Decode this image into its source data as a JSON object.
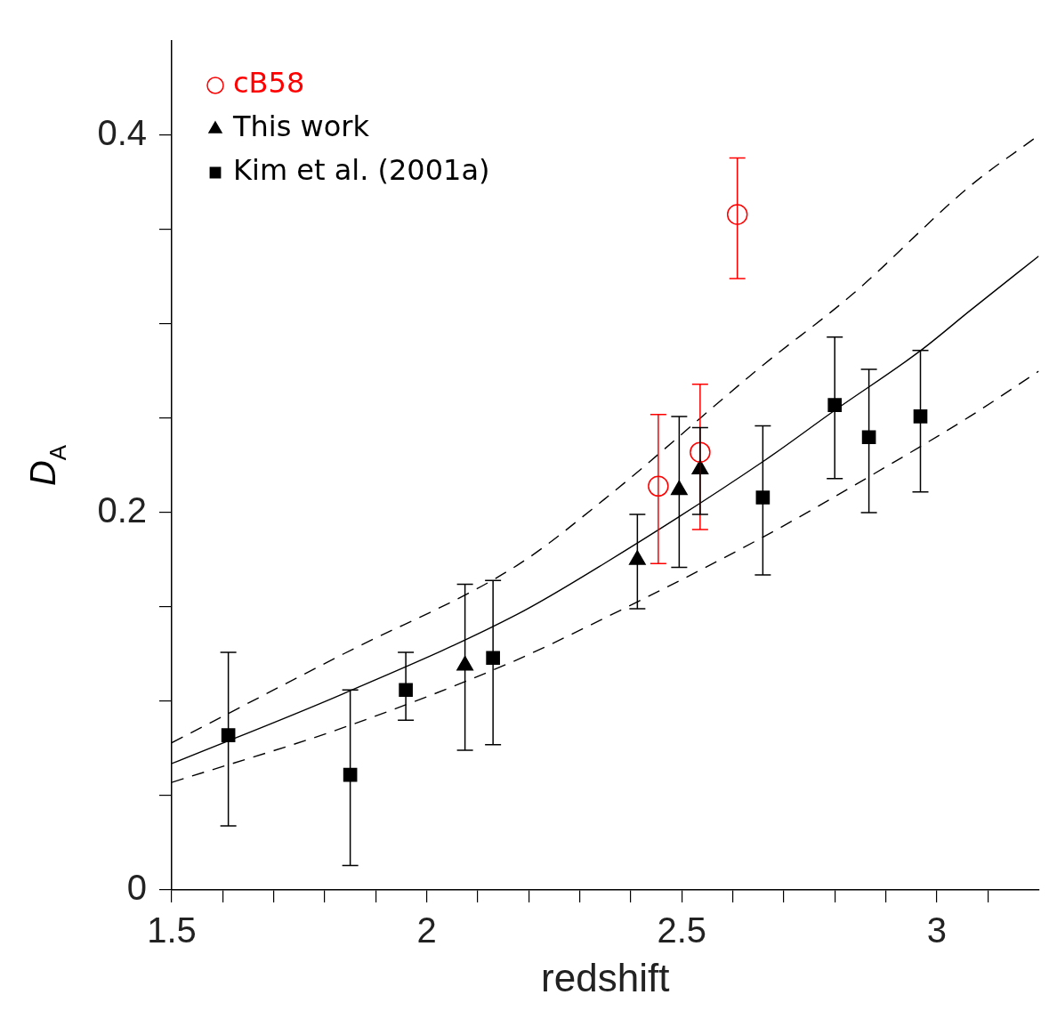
{
  "chart_data": {
    "type": "scatter",
    "xlabel": "redshift",
    "ylabel": "D$_{A}$",
    "xlim": [
      1.5,
      3.2
    ],
    "ylim": [
      0,
      0.45
    ],
    "xticks": [
      1.5,
      {
        "value": 1.6,
        "label": null
      },
      {
        "value": 1.7,
        "label": null
      },
      {
        "value": 1.8,
        "label": null
      },
      {
        "value": 1.9,
        "label": null
      },
      2,
      {
        "value": 2.1,
        "label": null
      },
      {
        "value": 2.2,
        "label": null
      },
      {
        "value": 2.3,
        "label": null
      },
      {
        "value": 2.4,
        "label": null
      },
      2.5,
      {
        "value": 2.6,
        "label": null
      },
      {
        "value": 2.7,
        "label": null
      },
      {
        "value": 2.8,
        "label": null
      },
      {
        "value": 2.9,
        "label": null
      },
      3,
      {
        "value": 3.1,
        "label": null
      }
    ],
    "yticks": [
      0,
      {
        "value": 0.05,
        "label": null
      },
      {
        "value": 0.1,
        "label": null
      },
      {
        "value": 0.15,
        "label": null
      },
      0.2,
      {
        "value": 0.25,
        "label": null
      },
      {
        "value": 0.3,
        "label": null
      },
      {
        "value": 0.35,
        "label": null
      },
      0.4
    ],
    "grid": false,
    "legend": "top left",
    "series": [
      {
        "name": "cB58",
        "color": "#ff0000",
        "marker": "circle",
        "x": [
          2.454,
          2.536,
          2.609
        ],
        "values": [
          0.214,
          0.232,
          0.358
        ],
        "errors": [
          [
            0.173,
            0.252
          ],
          [
            0.191,
            0.268
          ],
          [
            0.324,
            0.388
          ]
        ]
      },
      {
        "name": "This work",
        "color": "#000000",
        "marker": "triangle",
        "x": [
          2.075,
          2.413,
          2.495,
          2.536
        ],
        "values": [
          0.119,
          0.175,
          0.212,
          0.223
        ],
        "errors": [
          [
            0.074,
            0.162
          ],
          [
            0.149,
            0.199
          ],
          [
            0.171,
            0.251
          ],
          [
            0.199,
            0.245
          ]
        ]
      },
      {
        "name": "Kim et al. (2001a)",
        "color": "#000000",
        "marker": "square",
        "x": [
          1.611,
          1.85,
          1.959,
          2.13,
          2.659,
          2.8,
          2.867,
          2.968
        ],
        "values": [
          0.082,
          0.061,
          0.106,
          0.123,
          0.208,
          0.257,
          0.24,
          0.251
        ],
        "errors": [
          [
            0.034,
            0.126
          ],
          [
            0.013,
            0.106
          ],
          [
            0.09,
            0.126
          ],
          [
            0.077,
            0.164
          ],
          [
            0.167,
            0.246
          ],
          [
            0.218,
            0.293
          ],
          [
            0.2,
            0.276
          ],
          [
            0.211,
            0.286
          ]
        ]
      },
      {
        "type": "line",
        "color": "#000000",
        "marker": "none",
        "line_style": "solid",
        "x": [
          1.5,
          1.836,
          2.177,
          2.348,
          2.659,
          2.799,
          2.969,
          3.065,
          3.2
        ],
        "values": [
          0.067,
          0.104,
          0.146,
          0.173,
          0.227,
          0.254,
          0.286,
          0.307,
          0.336
        ]
      },
      {
        "type": "line",
        "color": "#000000",
        "marker": "none",
        "line_style": "dashed",
        "x": [
          1.5,
          1.836,
          2.177,
          2.348,
          2.654,
          2.836,
          3.065,
          3.2
        ],
        "values": [
          0.078,
          0.125,
          0.172,
          0.207,
          0.277,
          0.316,
          0.373,
          0.4
        ]
      },
      {
        "type": "line",
        "color": "#000000",
        "marker": "none",
        "line_style": "dashed",
        "x": [
          1.5,
          1.836,
          2.16,
          2.348,
          2.659,
          2.867,
          3.065,
          3.2
        ],
        "values": [
          0.057,
          0.086,
          0.12,
          0.144,
          0.187,
          0.219,
          0.251,
          0.275
        ]
      }
    ]
  }
}
